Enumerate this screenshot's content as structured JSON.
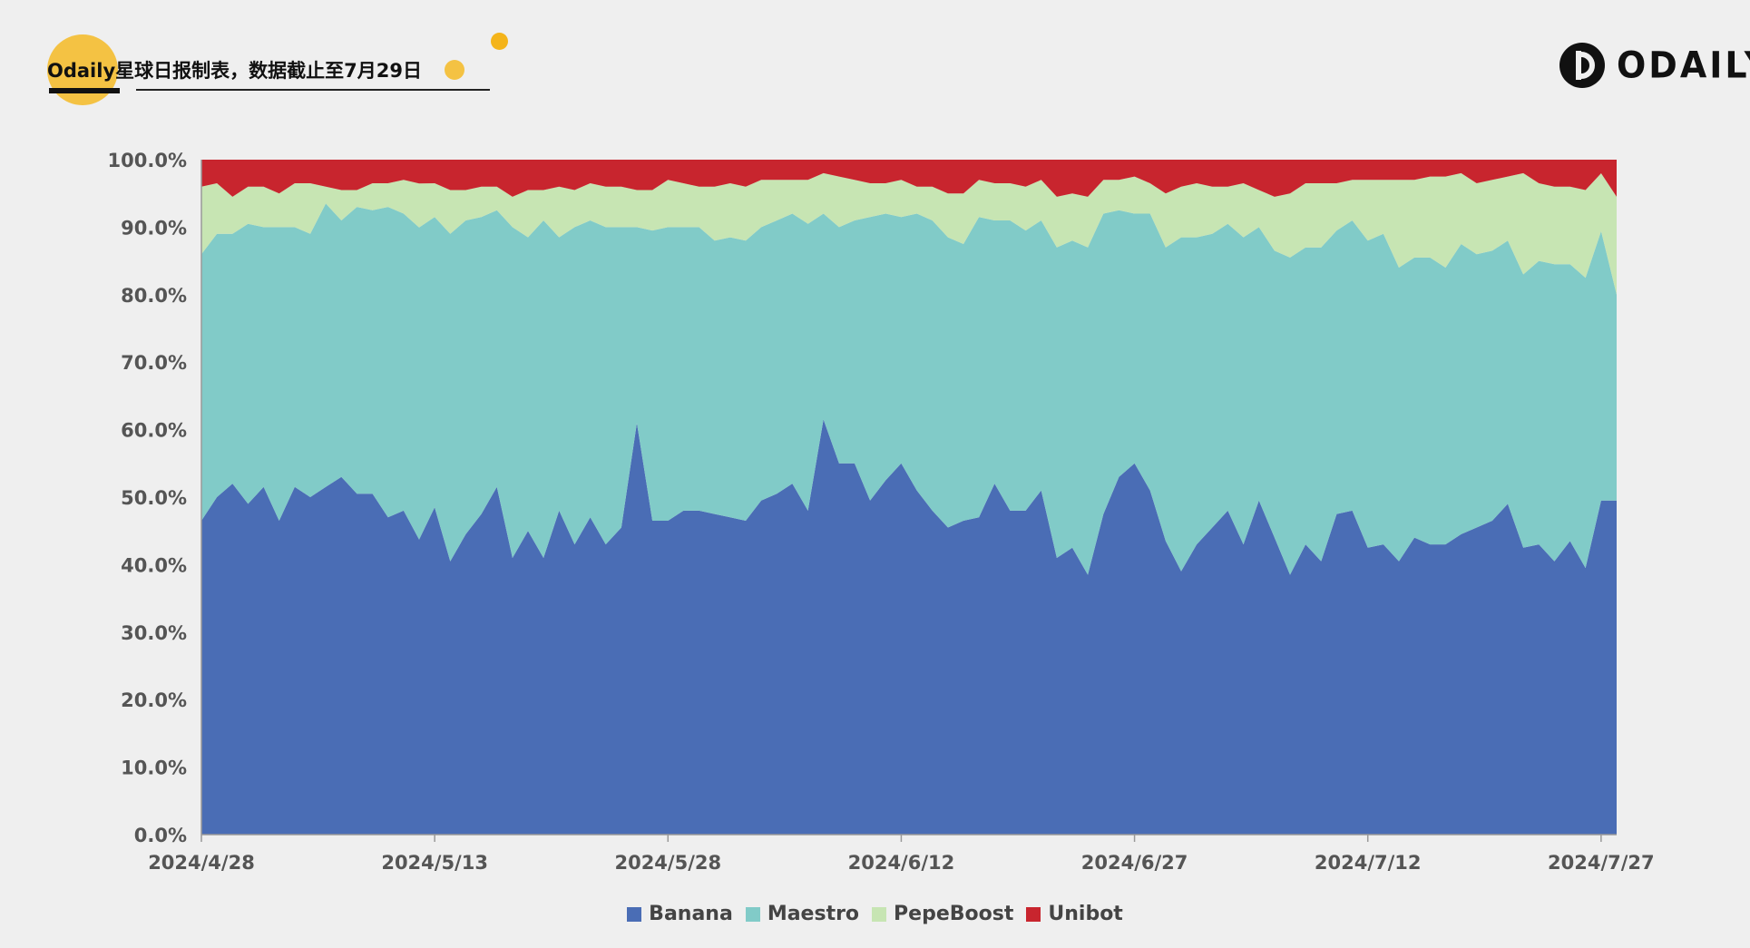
{
  "header": {
    "title": "Odaily星球日报制表，数据截止至7月29日",
    "logo_text": "ODAILY"
  },
  "colors": {
    "banana": "#4a6db5",
    "maestro": "#81cbc8",
    "pepeboost": "#c7e5b3",
    "unibot": "#c8252e",
    "accent": "#f4c243",
    "axis_text": "#555555"
  },
  "chart_data": {
    "type": "area",
    "stacked": true,
    "normalized": true,
    "title": "",
    "xlabel": "",
    "ylabel": "",
    "ylim": [
      0,
      100
    ],
    "y_ticks": [
      "0.0%",
      "10.0%",
      "20.0%",
      "30.0%",
      "40.0%",
      "50.0%",
      "60.0%",
      "70.0%",
      "80.0%",
      "90.0%",
      "100.0%"
    ],
    "x_tick_labels": [
      "2024/4/28",
      "2024/5/13",
      "2024/5/28",
      "2024/6/12",
      "2024/6/27",
      "2024/7/12",
      "2024/7/27"
    ],
    "x_tick_indices": [
      0,
      15,
      30,
      45,
      60,
      75,
      90
    ],
    "legend_position": "bottom",
    "series": [
      {
        "name": "Banana",
        "values": [
          46.5,
          50,
          52,
          49,
          51.5,
          46.5,
          51.5,
          50,
          51.5,
          53,
          50.5,
          50.5,
          47,
          48,
          43.5,
          48.5,
          40.5,
          44.5,
          47.5,
          51.5,
          41,
          45,
          41,
          48,
          43,
          47,
          43,
          45.5,
          61,
          46.5,
          46.5,
          48,
          48,
          47.5,
          47,
          46.5,
          49.5,
          50.5,
          52,
          48,
          61.5,
          55,
          55,
          49.5,
          52.5,
          55,
          51,
          48,
          45.5,
          46.5,
          47,
          52,
          48,
          48,
          51,
          41,
          42.5,
          38.5,
          47.5,
          53,
          55,
          51,
          43.5,
          39,
          43,
          45.5,
          48,
          43,
          49.5,
          44,
          38.5,
          43,
          40.5,
          47.5,
          48,
          42.5,
          43,
          40.5,
          44,
          43,
          43,
          44.5,
          45.5,
          46.5,
          49,
          42.5,
          43,
          40.5,
          43.5,
          39.5,
          49,
          49.5
        ]
      },
      {
        "name": "Maestro",
        "values": [
          39.5,
          39,
          37,
          41.5,
          38.5,
          43.5,
          38.5,
          39,
          42,
          38,
          42.5,
          42,
          46,
          44,
          46,
          43,
          48.5,
          46.5,
          44,
          41,
          49,
          43.5,
          50,
          40.5,
          47,
          44,
          47,
          44.5,
          29,
          43,
          43.5,
          42,
          42,
          40.5,
          41.5,
          41.5,
          40.5,
          40.5,
          40,
          42.5,
          30.5,
          35,
          36,
          42,
          39.5,
          36.5,
          41,
          43,
          43,
          41,
          44.5,
          39,
          43,
          41.5,
          40,
          46,
          45.5,
          48.5,
          44.5,
          39.5,
          37,
          41,
          43.5,
          49.5,
          45.5,
          43.5,
          42.5,
          45.5,
          40.5,
          42.5,
          47,
          44,
          46.5,
          42,
          43,
          45.5,
          46,
          43.5,
          41.5,
          42.5,
          41,
          43,
          40.5,
          40,
          39,
          40.5,
          42,
          44,
          41,
          43,
          39.5,
          30.5
        ]
      },
      {
        "name": "PepeBoost",
        "values": [
          10,
          7.5,
          5.5,
          5.5,
          6,
          5,
          6.5,
          7.5,
          2.5,
          4.5,
          2.5,
          4,
          3.5,
          5,
          6.5,
          5,
          6.5,
          4.5,
          4.5,
          3.5,
          4.5,
          7,
          4.5,
          7.5,
          5.5,
          5.5,
          6,
          6,
          5.5,
          6,
          7,
          6.5,
          6,
          8,
          8,
          8,
          7,
          6,
          5,
          6.5,
          6,
          7.5,
          6,
          5,
          4.5,
          5.5,
          4,
          5,
          6.5,
          7.5,
          5.5,
          5.5,
          5.5,
          6.5,
          6,
          7.5,
          7,
          7.5,
          5,
          4.5,
          5.5,
          4.5,
          8,
          7.5,
          8,
          7,
          5.5,
          8,
          5.5,
          8,
          9.5,
          9.5,
          9.5,
          7,
          6,
          9,
          8,
          13,
          11.5,
          12,
          13.5,
          10.5,
          10.5,
          10.5,
          9.5,
          15,
          11.5,
          11.5,
          11.5,
          13,
          8.5,
          14.5
        ]
      },
      {
        "name": "Unibot",
        "values": [
          4,
          3.5,
          5.5,
          4,
          4,
          5,
          3.5,
          3.5,
          4,
          4.5,
          4.5,
          3.5,
          3.5,
          3,
          3.5,
          3.5,
          4.5,
          4.5,
          4,
          4,
          5.5,
          4.5,
          4.5,
          4,
          4.5,
          3.5,
          4,
          4,
          4.5,
          4.5,
          3,
          3.5,
          4,
          4,
          3.5,
          4,
          3,
          3,
          3,
          3,
          2,
          2.5,
          3,
          3.5,
          3.5,
          3,
          4,
          4,
          5,
          5,
          3,
          3.5,
          3.5,
          4,
          3,
          5.5,
          5,
          5.5,
          3,
          3,
          2.5,
          3.5,
          5,
          4,
          3.5,
          4,
          4,
          3.5,
          4.5,
          5.5,
          5,
          3.5,
          3.5,
          3.5,
          3,
          3,
          3,
          3,
          3,
          2.5,
          2.5,
          2,
          3.5,
          3,
          2.5,
          2,
          3.5,
          4,
          4,
          4.5,
          2,
          5.5
        ]
      }
    ]
  }
}
